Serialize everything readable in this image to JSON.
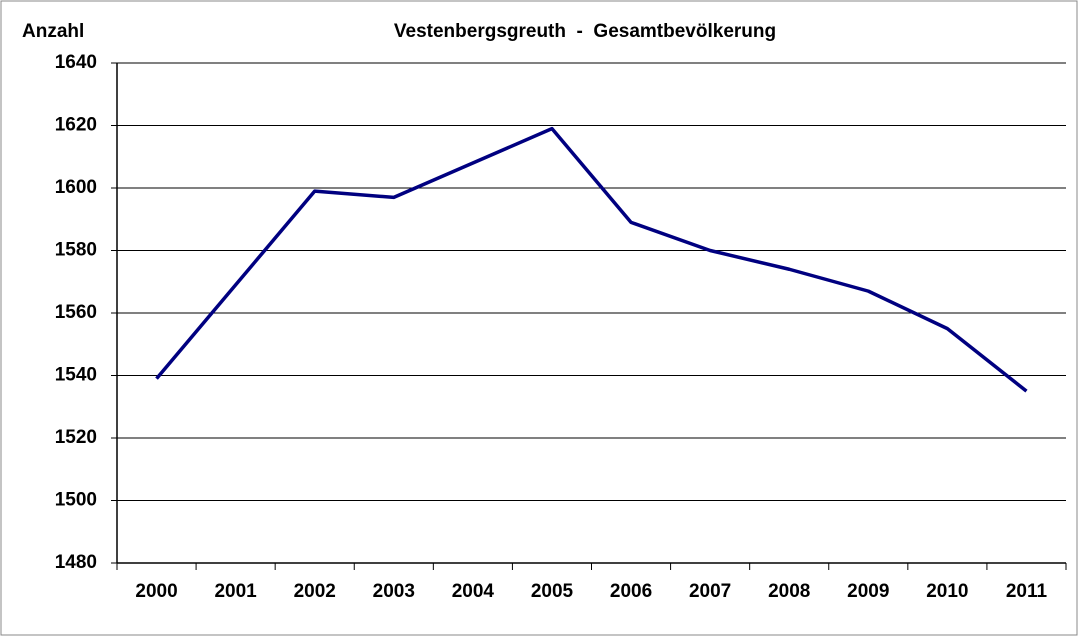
{
  "chart_data": {
    "type": "line",
    "title": "Vestenbergsgreuth  -  Gesamtbevölkerung",
    "y_label": "Anzahl",
    "categories": [
      "2000",
      "2001",
      "2002",
      "2003",
      "2004",
      "2005",
      "2006",
      "2007",
      "2008",
      "2009",
      "2010",
      "2011"
    ],
    "series": [
      {
        "name": "Gesamtbevölkerung",
        "color": "#000080",
        "values": [
          1539,
          1569,
          1599,
          1597,
          1608,
          1619,
          1589,
          1580,
          1574,
          1567,
          1555,
          1535
        ]
      }
    ],
    "ylim": [
      1480,
      1640
    ],
    "yticks": [
      1480,
      1500,
      1520,
      1540,
      1560,
      1580,
      1600,
      1620,
      1640
    ],
    "grid": true
  }
}
